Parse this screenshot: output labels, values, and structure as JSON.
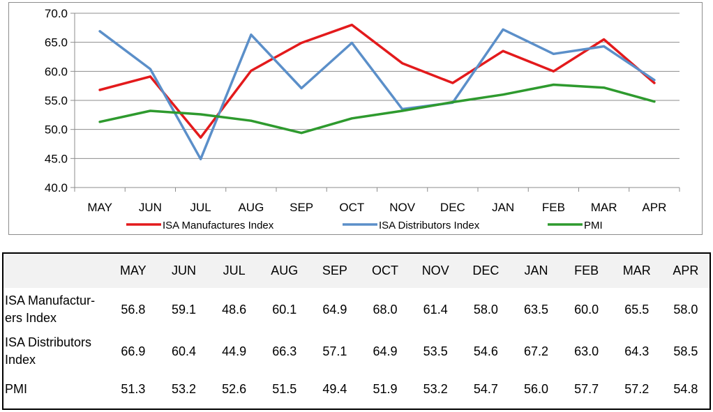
{
  "chart_data": {
    "type": "line",
    "categories": [
      "MAY",
      "JUN",
      "JUL",
      "AUG",
      "SEP",
      "OCT",
      "NOV",
      "DEC",
      "JAN",
      "FEB",
      "MAR",
      "APR"
    ],
    "series": [
      {
        "name": "ISA Manufactures Index",
        "color": "#e31a1c",
        "values": [
          56.8,
          59.1,
          48.6,
          60.1,
          64.9,
          68.0,
          61.4,
          58.0,
          63.5,
          60.0,
          65.5,
          58.0
        ]
      },
      {
        "name": "ISA Distributors Index",
        "color": "#5b8fc9",
        "values": [
          66.9,
          60.4,
          44.9,
          66.3,
          57.1,
          64.9,
          53.5,
          54.6,
          67.2,
          63.0,
          64.3,
          58.5
        ]
      },
      {
        "name": "PMI",
        "color": "#2e9a2e",
        "values": [
          51.3,
          53.2,
          52.6,
          51.5,
          49.4,
          51.9,
          53.2,
          54.7,
          56.0,
          57.7,
          57.2,
          54.8
        ]
      }
    ],
    "ylim": [
      40,
      70
    ],
    "yticks": [
      "70.0",
      "65.0",
      "60.0",
      "55.0",
      "50.0",
      "45.0",
      "40.0"
    ],
    "grid": true,
    "legend_position": "bottom"
  },
  "table": {
    "headers": [
      "MAY",
      "JUN",
      "JUL",
      "AUG",
      "SEP",
      "OCT",
      "NOV",
      "DEC",
      "JAN",
      "FEB",
      "MAR",
      "APR"
    ],
    "rows": [
      {
        "label_lines": [
          "ISA Manufactur-",
          "ers Index"
        ],
        "values": [
          "56.8",
          "59.1",
          "48.6",
          "60.1",
          "64.9",
          "68.0",
          "61.4",
          "58.0",
          "63.5",
          "60.0",
          "65.5",
          "58.0"
        ]
      },
      {
        "label_lines": [
          "ISA Distributors",
          "Index"
        ],
        "values": [
          "66.9",
          "60.4",
          "44.9",
          "66.3",
          "57.1",
          "64.9",
          "53.5",
          "54.6",
          "67.2",
          "63.0",
          "64.3",
          "58.5"
        ]
      },
      {
        "label_lines": [
          "PMI"
        ],
        "values": [
          "51.3",
          "53.2",
          "52.6",
          "51.5",
          "49.4",
          "51.9",
          "53.2",
          "54.7",
          "56.0",
          "57.7",
          "57.2",
          "54.8"
        ]
      }
    ]
  }
}
